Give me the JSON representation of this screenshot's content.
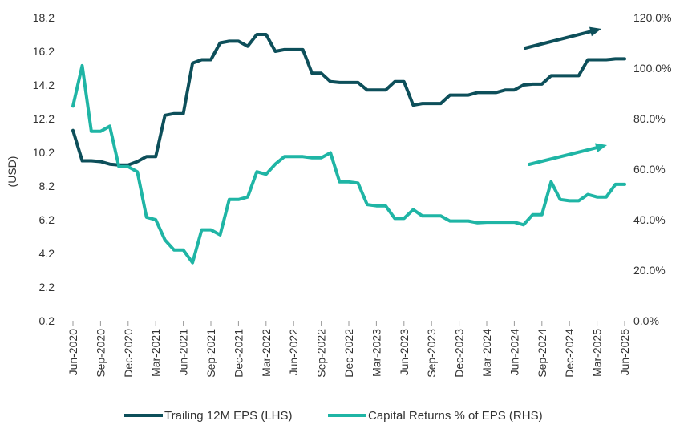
{
  "chart_data": {
    "type": "line",
    "ylabel": "(USD)",
    "x_labels": [
      "Jun-2020",
      "Sep-2020",
      "Dec-2020",
      "Mar-2021",
      "Jun-2021",
      "Sep-2021",
      "Dec-2021",
      "Mar-2022",
      "Jun-2022",
      "Sep-2022",
      "Dec-2022",
      "Mar-2023",
      "Jun-2023",
      "Sep-2023",
      "Dec-2023",
      "Mar-2024",
      "Jun-2024",
      "Sep-2024",
      "Dec-2024",
      "Mar-2025",
      "Jun-2025"
    ],
    "y_left": {
      "min": 0.2,
      "max": 18.2,
      "ticks": [
        "18.2",
        "16.2",
        "14.2",
        "12.2",
        "10.2",
        "8.2",
        "6.2",
        "4.2",
        "2.2",
        "0.2"
      ]
    },
    "y_right": {
      "min": 0,
      "max": 120,
      "ticks": [
        "120.0%",
        "100.0%",
        "80.0%",
        "60.0%",
        "40.0%",
        "20.0%",
        "0.0%"
      ]
    },
    "series": [
      {
        "name": "Trailing 12M EPS (LHS)",
        "axis": "left",
        "color": "#0d4f5a",
        "values": [
          11.5,
          9.7,
          9.7,
          9.65,
          9.5,
          9.45,
          9.45,
          9.65,
          9.95,
          9.95,
          12.4,
          12.5,
          12.5,
          15.5,
          15.7,
          15.7,
          16.7,
          16.8,
          16.8,
          16.5,
          17.2,
          17.2,
          16.2,
          16.3,
          16.3,
          16.3,
          14.9,
          14.9,
          14.4,
          14.35,
          14.35,
          14.35,
          13.9,
          13.9,
          13.9,
          14.4,
          14.4,
          13.0,
          13.1,
          13.1,
          13.1,
          13.6,
          13.6,
          13.6,
          13.75,
          13.75,
          13.75,
          13.9,
          13.9,
          14.2,
          14.25,
          14.25,
          14.75,
          14.75,
          14.75,
          14.75,
          15.7,
          15.7,
          15.7,
          15.75,
          15.75
        ]
      },
      {
        "name": "Capital Returns % of EPS (RHS)",
        "axis": "right",
        "color": "#1fb5a5",
        "values": [
          85,
          101,
          75,
          75,
          77,
          61,
          61,
          59,
          41,
          40,
          32,
          28,
          28,
          23,
          36,
          36,
          34,
          48,
          48,
          49,
          59,
          58,
          62,
          65,
          65,
          65,
          64.5,
          64.5,
          66.5,
          55,
          55,
          54.5,
          46,
          45.5,
          45.5,
          40.5,
          40.5,
          44,
          41.5,
          41.5,
          41.5,
          39.5,
          39.5,
          39.5,
          38.8,
          39,
          39,
          39,
          39,
          38,
          42,
          42,
          55,
          48,
          47.5,
          47.5,
          50,
          49,
          49,
          54,
          54
        ]
      }
    ]
  }
}
